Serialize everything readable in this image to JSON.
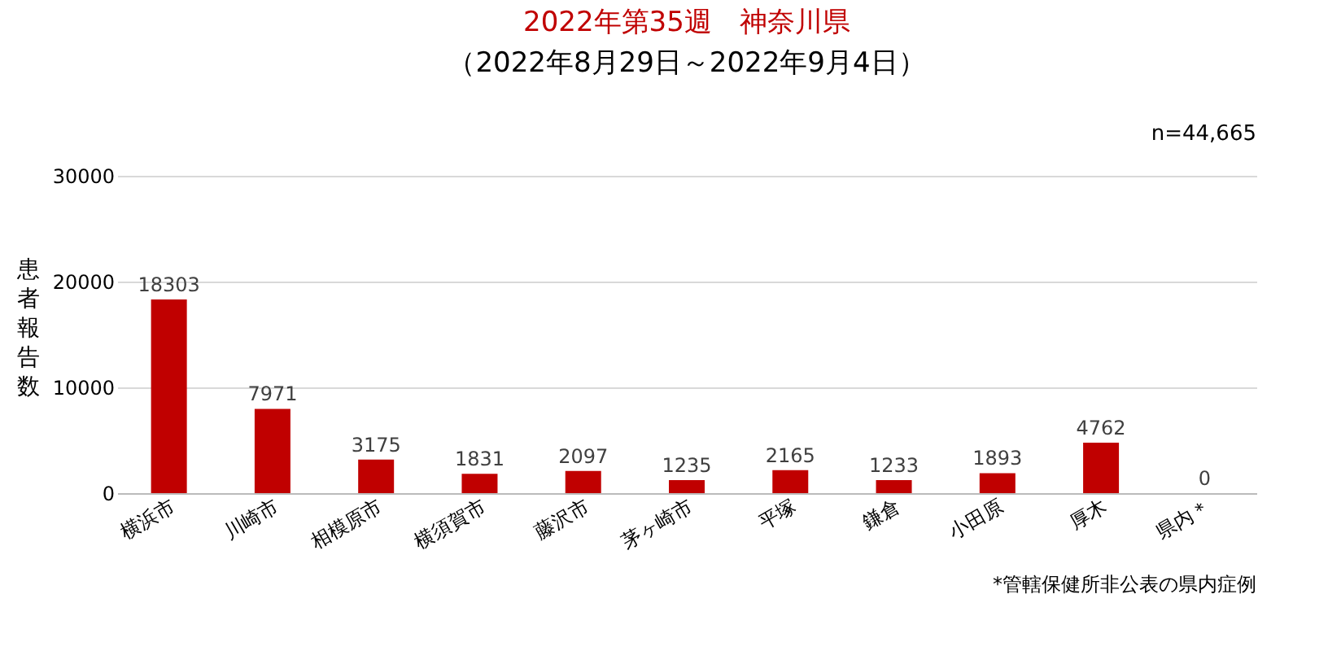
{
  "chart_data": {
    "type": "bar",
    "title": "2022年第35週　神奈川県",
    "subtitle": "（2022年8月29日～2022年9月4日）",
    "ylabel": "患者報告数",
    "categories": [
      "横浜市",
      "川崎市",
      "相模原市",
      "横須賀市",
      "藤沢市",
      "茅ヶ崎市",
      "平塚",
      "鎌倉",
      "小田原",
      "厚木",
      "県内＊"
    ],
    "values": [
      18303,
      7971,
      3175,
      1831,
      2097,
      1235,
      2165,
      1233,
      1893,
      4762,
      0
    ],
    "color": "#c00000",
    "ylim": [
      0,
      30000
    ],
    "yticks": [
      0,
      10000,
      20000,
      30000
    ],
    "grid": "y",
    "data_labels": true,
    "annotations": [
      "n=44,665",
      "*管轄保健所非公表の県内症例"
    ]
  }
}
